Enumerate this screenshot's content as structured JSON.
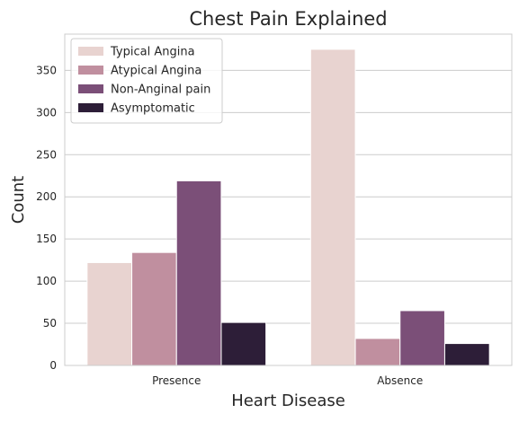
{
  "chart_data": {
    "type": "bar",
    "title": "Chest Pain Explained",
    "xlabel": "Heart Disease",
    "ylabel": "Count",
    "categories": [
      "Presence",
      "Absence"
    ],
    "series": [
      {
        "name": "Typical Angina",
        "values": [
          122,
          375
        ],
        "color": "#e8d3d0"
      },
      {
        "name": "Atypical Angina",
        "values": [
          134,
          32
        ],
        "color": "#c08f9f"
      },
      {
        "name": "Non-Anginal pain",
        "values": [
          219,
          65
        ],
        "color": "#7b4f78"
      },
      {
        "name": "Asymptomatic",
        "values": [
          51,
          26
        ],
        "color": "#2d1e38"
      }
    ],
    "ylim": [
      0,
      393
    ],
    "yticks": [
      0,
      50,
      100,
      150,
      200,
      250,
      300,
      350
    ],
    "grid": true,
    "legend_position": "top-left"
  }
}
